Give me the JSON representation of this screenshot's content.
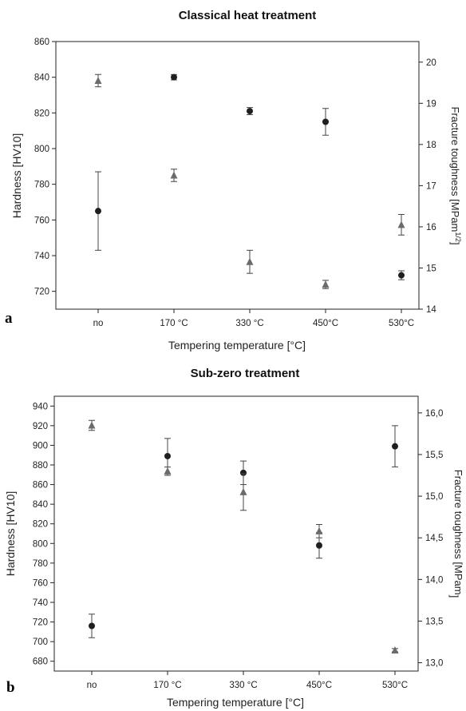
{
  "chart_data": [
    {
      "type": "scatter",
      "panel_label": "a",
      "title": "Classical heat treatment",
      "xlabel": "Tempering temperature [°C]",
      "ylabel": "Hardness [HV10]",
      "y2label": "Fracture toughness [MPam",
      "y2label_sup": "1/2",
      "y2label_end": "]",
      "categories": [
        "no",
        "170 °C",
        "330 °C",
        "450°C",
        "530°C"
      ],
      "ylim": [
        710,
        860
      ],
      "yticks": [
        720,
        740,
        760,
        780,
        800,
        820,
        840,
        860
      ],
      "y2lim": [
        14,
        20.5
      ],
      "y2ticks": [
        14,
        15,
        16,
        17,
        18,
        19,
        20
      ],
      "grid": false,
      "series": [
        {
          "marker": "circle",
          "axis": "left",
          "color": "#1f1f1f",
          "values": [
            765,
            840,
            821,
            815,
            729
          ],
          "errors": [
            22,
            1.5,
            2,
            7.5,
            2.5
          ]
        },
        {
          "marker": "triangle",
          "axis": "right",
          "color": "#6b6b6b",
          "values": [
            19.55,
            17.25,
            15.15,
            14.6,
            16.05
          ],
          "errors": [
            0.15,
            0.15,
            0.28,
            0.1,
            0.25
          ]
        }
      ]
    },
    {
      "type": "scatter",
      "panel_label": "b",
      "title": "Sub-zero treatment",
      "xlabel": "Tempering temperature [°C]",
      "ylabel": "Hardness [HV10]",
      "y2label": "Fracture toughness [MPam",
      "y2label_sup": "",
      "y2label_end": "]",
      "categories": [
        "no",
        "170 °C",
        "330 °C",
        "450°C",
        "530°C"
      ],
      "ylim": [
        670,
        950
      ],
      "yticks": [
        680,
        700,
        720,
        740,
        760,
        780,
        800,
        820,
        840,
        860,
        880,
        900,
        920,
        940
      ],
      "y2lim": [
        12.9,
        16.2
      ],
      "y2ticks": [
        "13,0",
        "13,5",
        "14,0",
        "14,5",
        "15,0",
        "15,5",
        "16,0"
      ],
      "y2tick_values": [
        13.0,
        13.5,
        14.0,
        14.5,
        15.0,
        15.5,
        16.0
      ],
      "grid": false,
      "series": [
        {
          "marker": "circle",
          "axis": "left",
          "color": "#1f1f1f",
          "values": [
            716,
            889,
            872,
            798,
            899
          ],
          "errors": [
            12,
            18,
            12,
            13,
            21
          ]
        },
        {
          "marker": "triangle",
          "axis": "right",
          "color": "#6b6b6b",
          "values": [
            15.85,
            15.3,
            15.05,
            14.58,
            13.15
          ],
          "errors": [
            0.06,
            0.05,
            0.22,
            0.08,
            0.02
          ]
        }
      ]
    }
  ]
}
